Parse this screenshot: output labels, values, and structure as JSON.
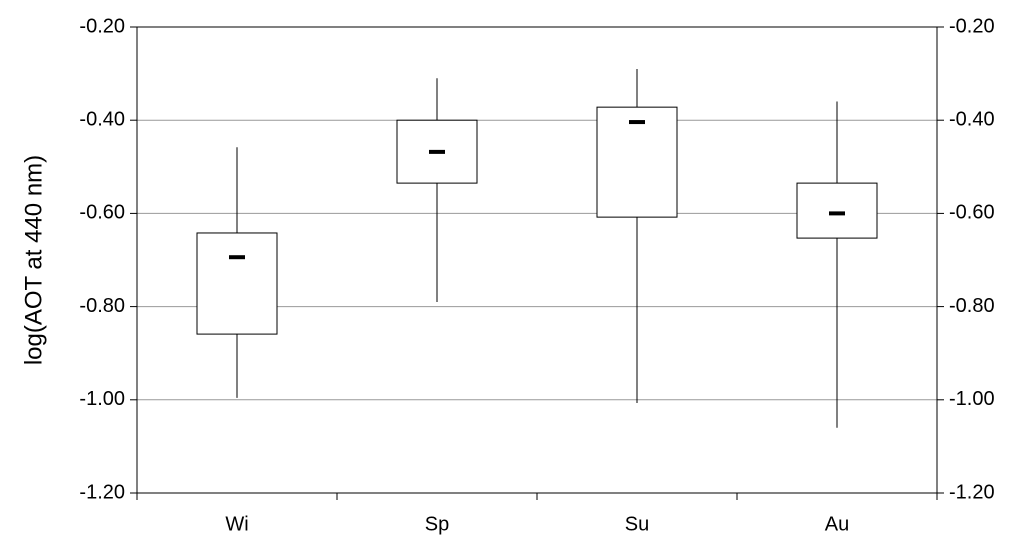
{
  "chart_data": {
    "type": "box",
    "y_label": "log(AOT at 440 nm)",
    "categories": [
      "Wi",
      "Sp",
      "Su",
      "Au"
    ],
    "high": [
      -0.458,
      -0.31,
      -0.29,
      -0.36
    ],
    "q3": [
      -0.642,
      -0.4,
      -0.372,
      -0.535
    ],
    "median": [
      -0.694,
      -0.468,
      -0.404,
      -0.6
    ],
    "q1": [
      -0.859,
      -0.535,
      -0.608,
      -0.653
    ],
    "low": [
      -0.996,
      -0.79,
      -1.007,
      -1.06
    ],
    "ylim": [
      -1.2,
      -0.2
    ],
    "yticks": [
      {
        "value": -1.2,
        "label": "-1.20"
      },
      {
        "value": -1.0,
        "label": "-1.00"
      },
      {
        "value": -0.8,
        "label": "-0.80"
      },
      {
        "value": -0.6,
        "label": "-0.60"
      },
      {
        "value": -0.4,
        "label": "-0.40"
      },
      {
        "value": -0.2,
        "label": "-0.20"
      }
    ],
    "grid": true,
    "color": "#ffffff"
  }
}
